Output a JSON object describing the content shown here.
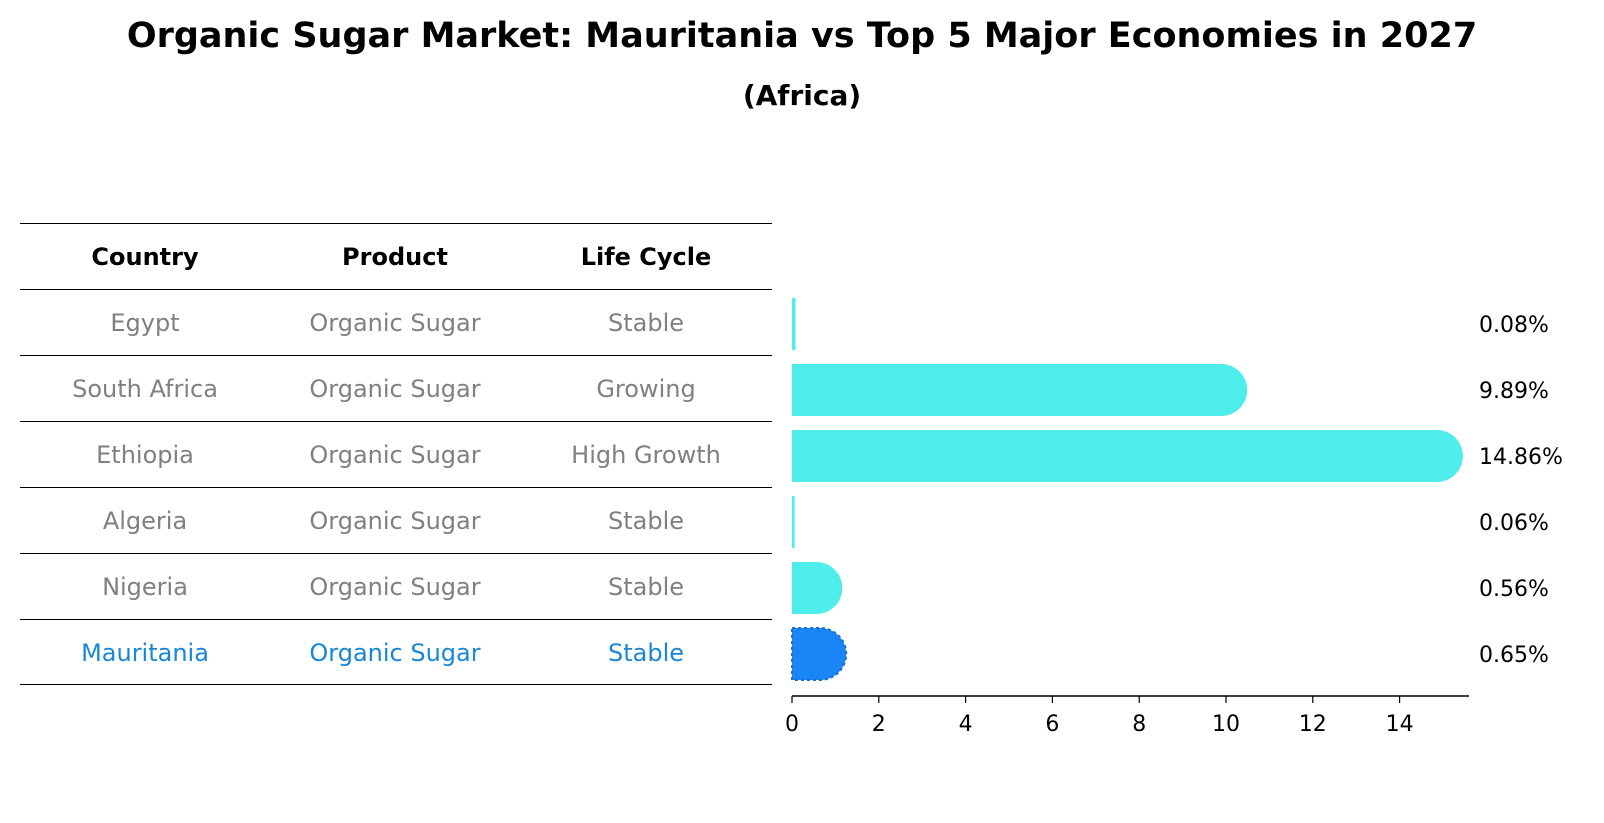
{
  "title": "Organic Sugar Market: Mauritania vs Top 5 Major Economies in 2027",
  "subtitle": "(Africa)",
  "table": {
    "headers": [
      "Country",
      "Product",
      "Life Cycle"
    ],
    "rows": [
      [
        "Egypt",
        "Organic Sugar",
        "Stable"
      ],
      [
        "South Africa",
        "Organic Sugar",
        "Growing"
      ],
      [
        "Ethiopia",
        "Organic Sugar",
        "High Growth"
      ],
      [
        "Algeria",
        "Organic Sugar",
        "Stable"
      ],
      [
        "Nigeria",
        "Organic Sugar",
        "Stable"
      ],
      [
        "Mauritania",
        "Organic Sugar",
        "Stable"
      ]
    ],
    "highlight_row": 5
  },
  "colors": {
    "bar": "#4cedea",
    "highlight_bar": "#1a86f5",
    "highlight_text": "#1a86d6",
    "muted_text": "#808080"
  },
  "chart_data": {
    "type": "bar",
    "orientation": "horizontal",
    "categories": [
      "Egypt",
      "South Africa",
      "Ethiopia",
      "Algeria",
      "Nigeria",
      "Mauritania"
    ],
    "values": [
      0.08,
      9.89,
      14.86,
      0.06,
      0.56,
      0.65
    ],
    "value_labels": [
      "0.08%",
      "9.89%",
      "14.86%",
      "0.06%",
      "0.56%",
      "0.65%"
    ],
    "highlight": "Mauritania",
    "xlim": [
      0,
      15.6
    ],
    "xticks": [
      0,
      2,
      4,
      6,
      8,
      10,
      12,
      14
    ],
    "xlabel": "",
    "ylabel": "",
    "grid": false
  }
}
